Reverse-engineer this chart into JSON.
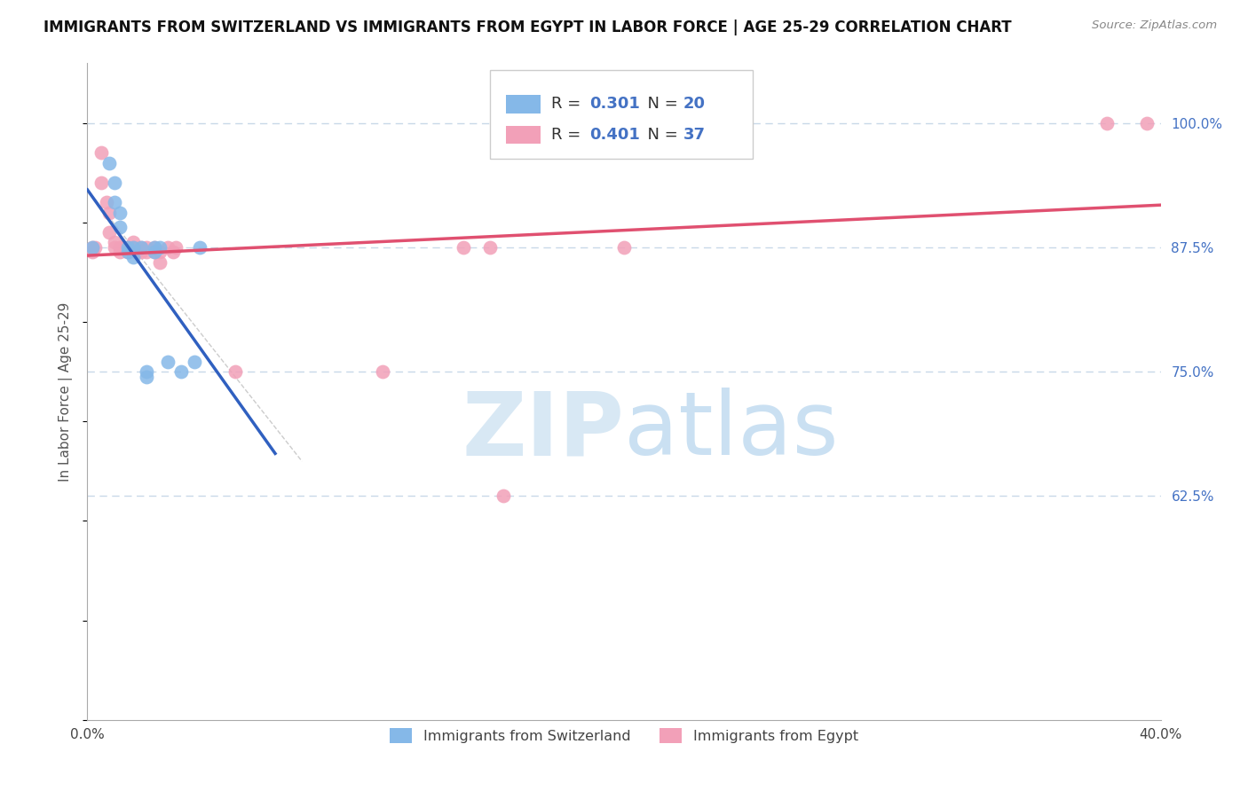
{
  "title": "IMMIGRANTS FROM SWITZERLAND VS IMMIGRANTS FROM EGYPT IN LABOR FORCE | AGE 25-29 CORRELATION CHART",
  "source": "Source: ZipAtlas.com",
  "ylabel": "In Labor Force | Age 25-29",
  "xlim": [
    0.0,
    0.4
  ],
  "ylim": [
    0.4,
    1.06
  ],
  "ytick_labels_right": [
    "100.0%",
    "87.5%",
    "75.0%",
    "62.5%"
  ],
  "ytick_vals_right": [
    1.0,
    0.875,
    0.75,
    0.625
  ],
  "switzerland_color": "#85b8e8",
  "egypt_color": "#f2a0b8",
  "switzerland_line_color": "#3060c0",
  "egypt_line_color": "#e05070",
  "R_switzerland": 0.301,
  "N_switzerland": 20,
  "R_egypt": 0.401,
  "N_egypt": 37,
  "sw_x": [
    0.002,
    0.008,
    0.01,
    0.01,
    0.012,
    0.012,
    0.015,
    0.015,
    0.017,
    0.017,
    0.02,
    0.022,
    0.022,
    0.025,
    0.025,
    0.027,
    0.03,
    0.035,
    0.04,
    0.042
  ],
  "sw_y": [
    0.875,
    0.96,
    0.94,
    0.92,
    0.91,
    0.895,
    0.875,
    0.87,
    0.875,
    0.865,
    0.875,
    0.75,
    0.745,
    0.875,
    0.87,
    0.875,
    0.76,
    0.75,
    0.76,
    0.875
  ],
  "eg_x": [
    0.002,
    0.002,
    0.003,
    0.005,
    0.005,
    0.007,
    0.008,
    0.008,
    0.01,
    0.01,
    0.012,
    0.012,
    0.013,
    0.015,
    0.015,
    0.017,
    0.017,
    0.018,
    0.02,
    0.02,
    0.022,
    0.022,
    0.025,
    0.025,
    0.027,
    0.027,
    0.03,
    0.032,
    0.033,
    0.055,
    0.11,
    0.14,
    0.15,
    0.155,
    0.2,
    0.38,
    0.395
  ],
  "eg_y": [
    0.875,
    0.87,
    0.875,
    0.97,
    0.94,
    0.92,
    0.91,
    0.89,
    0.88,
    0.875,
    0.875,
    0.87,
    0.875,
    0.875,
    0.87,
    0.88,
    0.875,
    0.87,
    0.875,
    0.87,
    0.875,
    0.87,
    0.875,
    0.87,
    0.87,
    0.86,
    0.875,
    0.87,
    0.875,
    0.75,
    0.75,
    0.875,
    0.875,
    0.625,
    0.875,
    1.0,
    1.0
  ],
  "watermark_zip": "ZIP",
  "watermark_atlas": "atlas",
  "background_color": "#ffffff",
  "grid_color": "#c8d8e8",
  "title_fontsize": 12,
  "axis_label_fontsize": 11,
  "tick_fontsize": 11,
  "legend_fontsize": 13
}
